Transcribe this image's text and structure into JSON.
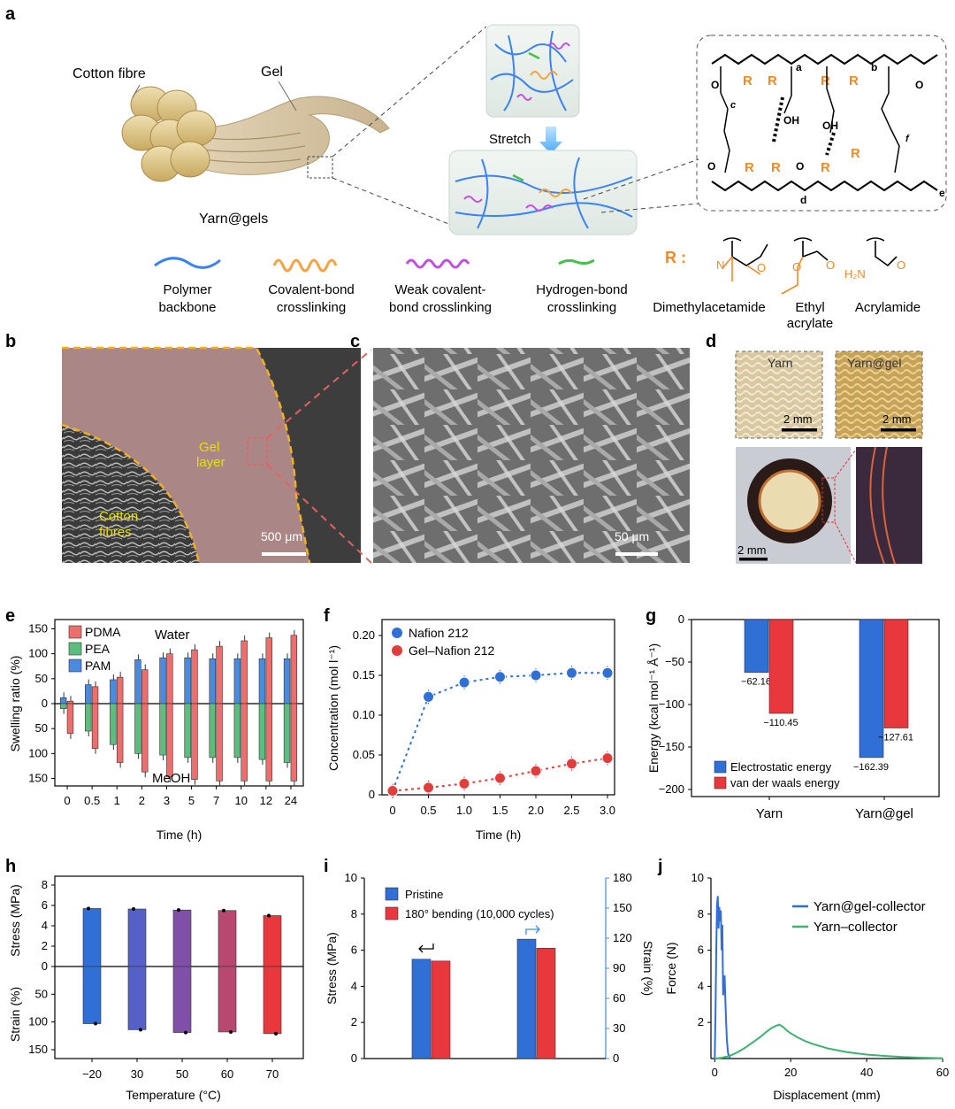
{
  "panels": {
    "a": {
      "label": "a",
      "cotton_fibre_label": "Cotton fibre",
      "gel_label": "Gel",
      "yarn_gels_label": "Yarn@gels",
      "stretch_label": "Stretch",
      "legend": [
        {
          "name": "Polymer backbone",
          "line1": "Polymer",
          "line2": "backbone",
          "color": "#3b82f6"
        },
        {
          "name": "Covalent-bond crosslinking",
          "line1": "Covalent-bond",
          "line2": "crosslinking",
          "color": "#f4a340"
        },
        {
          "name": "Weak covalent-bond crosslinking",
          "line1": "Weak covalent-",
          "line2": "bond crosslinking",
          "color": "#c34ee0"
        },
        {
          "name": "Hydrogen-bond crosslinking",
          "line1": "Hydrogen-bond",
          "line2": "crosslinking",
          "color": "#45c04a"
        }
      ],
      "r_group": {
        "label": "R :",
        "items": [
          {
            "line1": "Dimethylacetamide",
            "line2": ""
          },
          {
            "line1": "Ethyl",
            "line2": "acrylate"
          },
          {
            "line1": "Acrylamide",
            "line2": ""
          }
        ]
      },
      "chemistry": {
        "R": "R",
        "OH": "OH",
        "O": "O",
        "sub_a": "a",
        "sub_b": "b",
        "sub_c": "c",
        "sub_d": "d",
        "sub_e": "e",
        "sub_f": "f",
        "h2n": "H₂N",
        "n": "N"
      }
    },
    "b": {
      "label": "b",
      "gel_layer_1": "Gel",
      "gel_layer_2": "layer",
      "cotton_1": "Cotton",
      "cotton_2": "fibres",
      "scale": "500 μm"
    },
    "c": {
      "label": "c",
      "scale": "50 μm"
    },
    "d": {
      "label": "d",
      "yarn": "Yarn",
      "yarn_gel": "Yarn@gel",
      "scale1": "2 mm",
      "scale2": "2 mm",
      "scale3": "2 mm"
    },
    "e": {
      "label": "e"
    },
    "f": {
      "label": "f"
    },
    "g": {
      "label": "g"
    },
    "h": {
      "label": "h"
    },
    "i": {
      "label": "i"
    },
    "j": {
      "label": "j"
    }
  },
  "chart_data": [
    {
      "id": "e",
      "type": "bar",
      "title": "",
      "xlabel": "Time (h)",
      "ylabel": "Swelling ratio (%)",
      "categories": [
        "0",
        "0.5",
        "1",
        "2",
        "3",
        "5",
        "7",
        "10",
        "12",
        "24"
      ],
      "ylim": [
        -165,
        165
      ],
      "yticks": [
        "150",
        "100",
        "50",
        "0",
        "50",
        "100",
        "150"
      ],
      "annotations": [
        "Water",
        "MeOH"
      ],
      "series": [
        {
          "name": "PDMA",
          "color": "#ee6d6d",
          "water": [
            5,
            34,
            53,
            68,
            100,
            108,
            115,
            126,
            132,
            137
          ],
          "meoh": [
            60,
            90,
            118,
            137,
            147,
            152,
            155,
            155,
            155,
            155
          ]
        },
        {
          "name": "PEA",
          "color": "#5cbd7e",
          "water": [
            0,
            0,
            0,
            0,
            0,
            0,
            0,
            0,
            0,
            0
          ],
          "meoh": [
            10,
            55,
            82,
            100,
            103,
            108,
            108,
            108,
            112,
            118
          ]
        },
        {
          "name": "PAM",
          "color": "#4a8be0",
          "water": [
            12,
            38,
            48,
            88,
            92,
            92,
            90,
            90,
            90,
            90
          ],
          "meoh": [
            0,
            0,
            0,
            0,
            0,
            0,
            0,
            0,
            0,
            0
          ]
        }
      ]
    },
    {
      "id": "f",
      "type": "scatter",
      "title": "",
      "xlabel": "Time (h)",
      "ylabel": "Concentration (mol l⁻¹)",
      "xlim": [
        0,
        3.0
      ],
      "ylim": [
        0,
        0.2
      ],
      "xticks": [
        "0",
        "0.5",
        "1.0",
        "1.5",
        "2.0",
        "2.5",
        "3.0"
      ],
      "yticks": [
        "0",
        "0.05",
        "0.10",
        "0.15",
        "0.20"
      ],
      "series": [
        {
          "name": "Nafion 212",
          "color": "#2f6fd6",
          "x": [
            0,
            0.5,
            1.0,
            1.5,
            2.0,
            2.5,
            3.0
          ],
          "y": [
            0.005,
            0.123,
            0.141,
            0.148,
            0.15,
            0.153,
            0.153
          ]
        },
        {
          "name": "Gel–Nafion 212",
          "color": "#e23d3d",
          "x": [
            0,
            0.5,
            1.0,
            1.5,
            2.0,
            2.5,
            3.0
          ],
          "y": [
            0.005,
            0.009,
            0.014,
            0.021,
            0.03,
            0.039,
            0.046
          ]
        }
      ]
    },
    {
      "id": "g",
      "type": "bar",
      "title": "",
      "xlabel": "",
      "ylabel": "Energy (kcal mol⁻¹ Å⁻¹)",
      "categories": [
        "Yarn",
        "Yarn@gel"
      ],
      "ylim": [
        -200,
        0
      ],
      "yticks": [
        "0",
        "−50",
        "−100",
        "−150",
        "−200"
      ],
      "series": [
        {
          "name": "Electrostatic energy",
          "color": "#2f6fd6",
          "values": [
            -62.16,
            -162.39
          ],
          "labels": [
            "−62.16",
            "−162.39"
          ]
        },
        {
          "name": "van der waals energy",
          "color": "#e8383d",
          "values": [
            -110.45,
            -127.61
          ],
          "labels": [
            "−110.45",
            "−127.61"
          ]
        }
      ]
    },
    {
      "id": "h",
      "type": "bar",
      "title": "",
      "xlabel": "Temperature (°C)",
      "ylabel_top": "Stress (MPa)",
      "ylabel_bottom": "Strain (%)",
      "categories": [
        "−20",
        "30",
        "50",
        "60",
        "70"
      ],
      "colors": [
        "#2f6fd6",
        "#5560c8",
        "#8050a8",
        "#b84870",
        "#e8383d"
      ],
      "stress": [
        5.7,
        5.65,
        5.55,
        5.5,
        5.0
      ],
      "strain": [
        103,
        114,
        119,
        118,
        121
      ],
      "yticks_top": [
        "8",
        "6",
        "4",
        "2",
        "0"
      ],
      "yticks_bottom": [
        "50",
        "100",
        "150"
      ]
    },
    {
      "id": "i",
      "type": "bar",
      "title": "",
      "xlabel": "",
      "ylabel": "Stress (MPa)",
      "ylabel_right": "Strain (%)",
      "ylim": [
        0,
        10
      ],
      "ylim_right": [
        0,
        180
      ],
      "yticks": [
        "0",
        "2",
        "4",
        "6",
        "8",
        "10"
      ],
      "yticks_right": [
        "0",
        "30",
        "60",
        "90",
        "120",
        "150",
        "180"
      ],
      "series": [
        {
          "name": "Pristine",
          "color": "#2f6fd6",
          "stress": 5.5,
          "strain": 119
        },
        {
          "name": "180° bending (10,000 cycles)",
          "color": "#e8383d",
          "stress": 5.4,
          "strain": 110
        }
      ]
    },
    {
      "id": "j",
      "type": "line",
      "title": "",
      "xlabel": "Displacement (mm)",
      "ylabel": "Force (N)",
      "xlim": [
        -1,
        60
      ],
      "ylim": [
        0,
        10
      ],
      "xticks": [
        "0",
        "20",
        "40",
        "60"
      ],
      "yticks": [
        "2",
        "4",
        "6",
        "8",
        "10"
      ],
      "series": [
        {
          "name": "Yarn@gel-collector",
          "color": "#2f6fd6",
          "x": [
            0,
            0.2,
            0.4,
            0.6,
            0.8,
            1.0,
            1.2,
            1.4,
            1.6,
            1.8,
            2.0,
            2.2,
            2.4,
            2.6,
            2.8,
            3.0,
            3.2,
            3.5,
            4.0
          ],
          "y": [
            0,
            2.5,
            6.0,
            8.5,
            9.0,
            7.2,
            8.4,
            7.6,
            8.2,
            6.0,
            7.4,
            3.5,
            4.0,
            4.6,
            3.2,
            2.0,
            1.0,
            0.3,
            0
          ]
        },
        {
          "name": "Yarn–collector",
          "color": "#3cb371",
          "x": [
            0,
            2,
            4,
            6,
            8,
            10,
            12,
            14,
            15,
            16,
            17,
            18,
            19,
            20,
            22,
            24,
            26,
            30,
            35,
            40,
            45,
            50,
            55,
            60
          ],
          "y": [
            0,
            0.05,
            0.15,
            0.35,
            0.6,
            0.9,
            1.2,
            1.55,
            1.7,
            1.8,
            1.88,
            1.75,
            1.55,
            1.4,
            1.15,
            0.95,
            0.8,
            0.55,
            0.35,
            0.22,
            0.14,
            0.08,
            0.04,
            0.02
          ]
        }
      ]
    }
  ]
}
